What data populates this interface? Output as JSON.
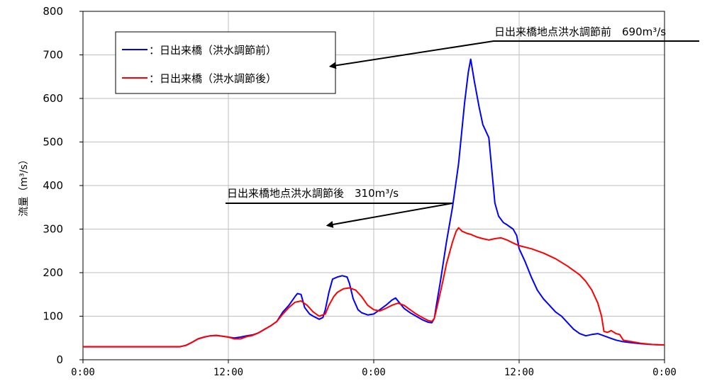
{
  "chart_data": {
    "type": "line",
    "ylabel": "流量（m³/s）",
    "ylim": [
      0,
      800
    ],
    "yticks": [
      0,
      100,
      200,
      300,
      400,
      500,
      600,
      700,
      800
    ],
    "xlim": [
      0,
      48
    ],
    "xticks": [
      {
        "hour": 0,
        "label": "0:00"
      },
      {
        "hour": 12,
        "label": "12:00"
      },
      {
        "hour": 24,
        "label": "0:00"
      },
      {
        "hour": 36,
        "label": "12:00"
      },
      {
        "hour": 48,
        "label": "0:00"
      }
    ],
    "grid": true,
    "legend": {
      "placement": "top-left",
      "items": [
        {
          "label": "：日出来橋（洪水調節前）",
          "color": "#0000ff"
        },
        {
          "label": "：日出来橋（洪水調節後）",
          "color": "#ff0000"
        }
      ]
    },
    "annotations": [
      {
        "label": "日出来橋地点洪水調節前　690m³/s",
        "x": 20.3,
        "y": 690
      },
      {
        "label": "日出来橋地点洪水調節後　310m³/s",
        "x": 20.0,
        "y": 310
      }
    ],
    "series": [
      {
        "name": "日出来橋（洪水調節前）",
        "color": "#0000ff",
        "points": [
          [
            0,
            30
          ],
          [
            8,
            30
          ],
          [
            8.5,
            33
          ],
          [
            9,
            40
          ],
          [
            9.5,
            48
          ],
          [
            10,
            52
          ],
          [
            10.5,
            55
          ],
          [
            11,
            56
          ],
          [
            11.5,
            54
          ],
          [
            12,
            52
          ],
          [
            12.5,
            50
          ],
          [
            13,
            52
          ],
          [
            13.5,
            55
          ],
          [
            14,
            57
          ],
          [
            14.5,
            62
          ],
          [
            15,
            70
          ],
          [
            15.5,
            78
          ],
          [
            16,
            88
          ],
          [
            16.5,
            110
          ],
          [
            17,
            125
          ],
          [
            17.5,
            145
          ],
          [
            17.7,
            152
          ],
          [
            18,
            150
          ],
          [
            18.3,
            120
          ],
          [
            18.7,
            105
          ],
          [
            19,
            100
          ],
          [
            19.5,
            93
          ],
          [
            19.8,
            97
          ],
          [
            20,
            115
          ],
          [
            20.3,
            155
          ],
          [
            20.6,
            185
          ],
          [
            21,
            190
          ],
          [
            21.4,
            193
          ],
          [
            21.8,
            190
          ],
          [
            22,
            175
          ],
          [
            22.3,
            140
          ],
          [
            22.7,
            115
          ],
          [
            23,
            108
          ],
          [
            23.5,
            103
          ],
          [
            24,
            105
          ],
          [
            24.5,
            115
          ],
          [
            25,
            125
          ],
          [
            25.5,
            137
          ],
          [
            25.8,
            142
          ],
          [
            26,
            135
          ],
          [
            26.5,
            118
          ],
          [
            27,
            108
          ],
          [
            27.5,
            100
          ],
          [
            28,
            92
          ],
          [
            28.5,
            86
          ],
          [
            28.8,
            85
          ],
          [
            29,
            95
          ],
          [
            29.2,
            130
          ],
          [
            29.5,
            180
          ],
          [
            30,
            270
          ],
          [
            30.5,
            350
          ],
          [
            31,
            450
          ],
          [
            31.5,
            590
          ],
          [
            31.8,
            660
          ],
          [
            32,
            690
          ],
          [
            32.3,
            640
          ],
          [
            32.7,
            580
          ],
          [
            33,
            540
          ],
          [
            33.5,
            510
          ],
          [
            33.8,
            420
          ],
          [
            34,
            360
          ],
          [
            34.3,
            330
          ],
          [
            34.7,
            315
          ],
          [
            35,
            310
          ],
          [
            35.5,
            300
          ],
          [
            35.8,
            285
          ],
          [
            36,
            255
          ],
          [
            36.5,
            225
          ],
          [
            37,
            190
          ],
          [
            37.5,
            160
          ],
          [
            38,
            140
          ],
          [
            38.5,
            125
          ],
          [
            39,
            110
          ],
          [
            39.5,
            100
          ],
          [
            40,
            85
          ],
          [
            40.5,
            70
          ],
          [
            41,
            60
          ],
          [
            41.5,
            55
          ],
          [
            42,
            58
          ],
          [
            42.5,
            60
          ],
          [
            43,
            55
          ],
          [
            43.5,
            50
          ],
          [
            44,
            45
          ],
          [
            44.5,
            42
          ],
          [
            45,
            40
          ],
          [
            46,
            37
          ],
          [
            47,
            35
          ],
          [
            48,
            34
          ]
        ]
      },
      {
        "name": "日出来橋（洪水調節後）",
        "color": "#ff0000",
        "points": [
          [
            0,
            30
          ],
          [
            8,
            30
          ],
          [
            8.5,
            33
          ],
          [
            9,
            40
          ],
          [
            9.5,
            48
          ],
          [
            10,
            52
          ],
          [
            10.5,
            55
          ],
          [
            11,
            56
          ],
          [
            11.5,
            54
          ],
          [
            12,
            52
          ],
          [
            12.5,
            48
          ],
          [
            13,
            48
          ],
          [
            13.5,
            53
          ],
          [
            14,
            56
          ],
          [
            14.5,
            62
          ],
          [
            15,
            70
          ],
          [
            15.5,
            78
          ],
          [
            16,
            88
          ],
          [
            16.5,
            105
          ],
          [
            17,
            120
          ],
          [
            17.5,
            132
          ],
          [
            18,
            135
          ],
          [
            18.5,
            125
          ],
          [
            19,
            110
          ],
          [
            19.5,
            100
          ],
          [
            20,
            105
          ],
          [
            20.3,
            125
          ],
          [
            20.7,
            145
          ],
          [
            21,
            155
          ],
          [
            21.5,
            163
          ],
          [
            22,
            165
          ],
          [
            22.5,
            160
          ],
          [
            23,
            145
          ],
          [
            23.5,
            125
          ],
          [
            24,
            115
          ],
          [
            24.5,
            112
          ],
          [
            25,
            118
          ],
          [
            25.5,
            125
          ],
          [
            26,
            130
          ],
          [
            26.5,
            125
          ],
          [
            27,
            115
          ],
          [
            27.5,
            105
          ],
          [
            28,
            97
          ],
          [
            28.5,
            90
          ],
          [
            28.8,
            88
          ],
          [
            29,
            95
          ],
          [
            29.3,
            130
          ],
          [
            29.7,
            180
          ],
          [
            30,
            220
          ],
          [
            30.5,
            270
          ],
          [
            30.8,
            295
          ],
          [
            31,
            303
          ],
          [
            31.3,
            295
          ],
          [
            31.7,
            290
          ],
          [
            32,
            288
          ],
          [
            32.5,
            282
          ],
          [
            33,
            278
          ],
          [
            33.5,
            275
          ],
          [
            34,
            278
          ],
          [
            34.5,
            280
          ],
          [
            35,
            275
          ],
          [
            35.5,
            268
          ],
          [
            36,
            262
          ],
          [
            37,
            255
          ],
          [
            38,
            245
          ],
          [
            39,
            232
          ],
          [
            40,
            215
          ],
          [
            41,
            195
          ],
          [
            41.5,
            180
          ],
          [
            42,
            160
          ],
          [
            42.5,
            130
          ],
          [
            42.8,
            100
          ],
          [
            43,
            65
          ],
          [
            43.3,
            63
          ],
          [
            43.6,
            67
          ],
          [
            44,
            60
          ],
          [
            44.3,
            58
          ],
          [
            44.6,
            45
          ],
          [
            45,
            43
          ],
          [
            46,
            38
          ],
          [
            47,
            35
          ],
          [
            48,
            34
          ]
        ]
      }
    ]
  }
}
